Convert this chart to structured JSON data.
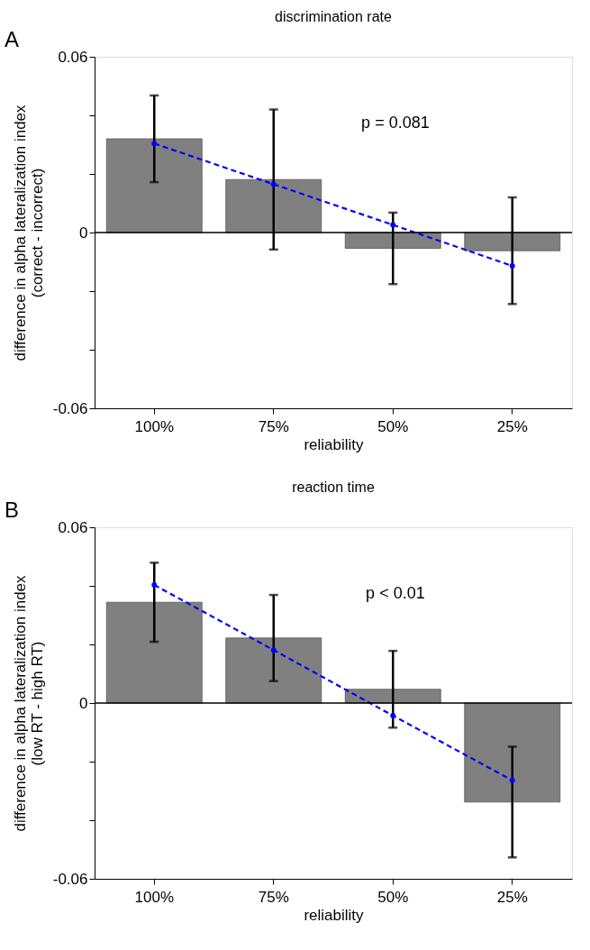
{
  "chart_data": [
    {
      "type": "bar",
      "title": "discrimination rate",
      "xlabel": "reliability",
      "ylabel": "difference in alpha lateralization index\n(correct - incorrect)",
      "categories": [
        "100%",
        "75%",
        "50%",
        "25%"
      ],
      "series": [
        {
          "color": "#808080",
          "values": [
            0.032,
            0.0181,
            -0.0054,
            -0.0062
          ],
          "errors": [
            0.0148,
            0.0239,
            0.0122,
            0.0182
          ]
        },
        {
          "type": "line",
          "color": "#0000ff",
          "values": [
            0.0304,
            0.0165,
            0.0026,
            -0.0114
          ],
          "line_style": "dashed",
          "marker": "circle"
        }
      ],
      "ylim": [
        -0.06,
        0.06
      ],
      "yticks": [
        -0.06,
        {
          "value": -0.04,
          "label": null
        },
        {
          "value": -0.02,
          "label": null
        },
        0,
        {
          "value": 0.02,
          "label": null
        },
        {
          "value": 0.04,
          "label": null
        },
        0.06
      ],
      "ref_lines": [
        {
          "axis": "y",
          "value": 0,
          "color": "#000000"
        }
      ],
      "annotations": [
        "A",
        "p = 0.081"
      ],
      "grid": false
    },
    {
      "type": "bar",
      "title": "reaction time",
      "xlabel": "reliability",
      "ylabel": "difference in alpha lateralization index\n(low RT - high RT)",
      "categories": [
        "100%",
        "75%",
        "50%",
        "25%"
      ],
      "series": [
        {
          "color": "#808080",
          "values": [
            0.0344,
            0.0222,
            0.0047,
            -0.0338
          ],
          "errors": [
            0.0135,
            0.0147,
            0.0131,
            0.0189
          ]
        },
        {
          "type": "line",
          "color": "#0000ff",
          "values": [
            0.0403,
            0.0181,
            -0.0043,
            -0.0264
          ],
          "line_style": "dashed",
          "marker": "circle"
        }
      ],
      "ylim": [
        -0.06,
        0.06
      ],
      "yticks": [
        -0.06,
        {
          "value": -0.04,
          "label": null
        },
        {
          "value": -0.02,
          "label": null
        },
        0,
        {
          "value": 0.02,
          "label": null
        },
        {
          "value": 0.04,
          "label": null
        },
        0.06
      ],
      "ref_lines": [
        {
          "axis": "y",
          "value": 0,
          "color": "#000000"
        }
      ],
      "annotations": [
        "B",
        "p < 0.01"
      ],
      "grid": false
    }
  ]
}
